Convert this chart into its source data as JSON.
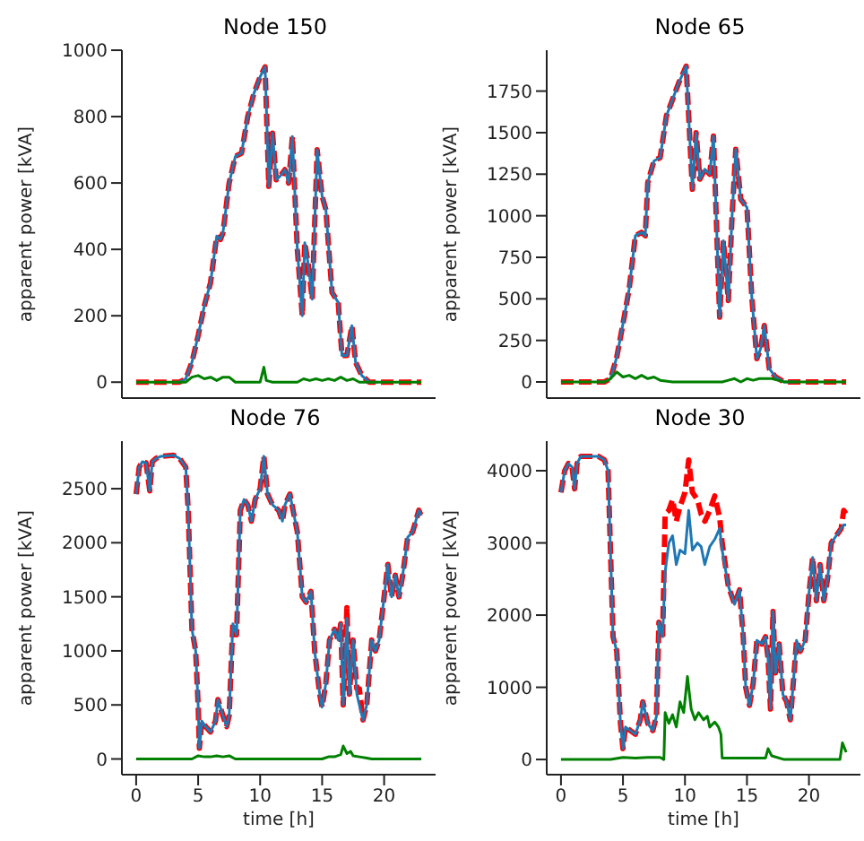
{
  "chart_data": [
    {
      "type": "line",
      "title": "Node 150",
      "ylabel": "apparent power [kVA]",
      "xlim": [
        -1.15,
        24.15
      ],
      "ylim": [
        -48,
        1000
      ],
      "yticks": [
        0,
        200,
        400,
        600,
        800,
        1000
      ],
      "tick_labels": "y",
      "series": [
        {
          "color": "#ff0000",
          "line_style": "dashed",
          "x": [
            0,
            1,
            2,
            3,
            3.5,
            4,
            4.5,
            5,
            5.5,
            6,
            6.5,
            6.8,
            7,
            7.5,
            8,
            8.5,
            9,
            9.5,
            10,
            10.4,
            10.7,
            11,
            11.3,
            11.6,
            12,
            12.3,
            12.6,
            13,
            13.4,
            13.6,
            13.9,
            14.2,
            14.6,
            15,
            15.3,
            15.8,
            16.3,
            16.6,
            17,
            17.4,
            17.7,
            18.2,
            18.8,
            19.5,
            20,
            21,
            22,
            23
          ],
          "values": [
            0,
            0,
            0,
            0,
            0,
            10,
            60,
            140,
            230,
            300,
            440,
            430,
            450,
            600,
            680,
            690,
            800,
            870,
            920,
            950,
            590,
            750,
            610,
            620,
            640,
            600,
            740,
            400,
            200,
            420,
            350,
            250,
            700,
            560,
            520,
            270,
            240,
            80,
            80,
            170,
            60,
            20,
            0,
            0,
            0,
            0,
            0,
            0
          ]
        },
        {
          "color": "#1f77b4",
          "line_style": "solid",
          "x": [
            3,
            3.5,
            4,
            4.5,
            5,
            5.5,
            6,
            6.5,
            6.8,
            7,
            7.5,
            8,
            8.5,
            9,
            9.5,
            10,
            10.4,
            10.7,
            11,
            11.3,
            11.6,
            12,
            12.3,
            12.6,
            13,
            13.4,
            13.6,
            13.9,
            14.2,
            14.6,
            15,
            15.3,
            15.8,
            16.3,
            16.6,
            17,
            17.4,
            17.7,
            18.2,
            18.8,
            19.5
          ],
          "values": [
            0,
            0,
            10,
            60,
            140,
            230,
            300,
            440,
            430,
            450,
            600,
            680,
            690,
            800,
            870,
            920,
            950,
            590,
            750,
            610,
            620,
            640,
            600,
            740,
            400,
            200,
            420,
            350,
            250,
            700,
            560,
            520,
            270,
            240,
            80,
            80,
            170,
            60,
            20,
            0,
            0
          ]
        },
        {
          "color": "#008000",
          "line_style": "solid",
          "x": [
            0,
            4,
            4.5,
            5,
            5.5,
            6,
            6.5,
            7,
            7.5,
            8,
            9,
            10,
            10.3,
            10.5,
            11,
            13,
            13.5,
            14,
            14.5,
            15,
            15.5,
            16,
            16.5,
            17,
            17.5,
            18,
            23
          ],
          "values": [
            0,
            0,
            15,
            20,
            10,
            15,
            5,
            15,
            15,
            0,
            0,
            0,
            45,
            5,
            0,
            0,
            10,
            5,
            10,
            5,
            10,
            5,
            15,
            5,
            10,
            0,
            0
          ]
        }
      ]
    },
    {
      "type": "line",
      "title": "Node 65",
      "ylabel": "apparent power [kVA]",
      "xlim": [
        -1.15,
        24.15
      ],
      "ylim": [
        -97,
        1996
      ],
      "yticks": [
        0,
        250,
        500,
        750,
        1000,
        1250,
        1500,
        1750
      ],
      "tick_labels": "y",
      "series": [
        {
          "color": "#ff0000",
          "line_style": "dashed",
          "x": [
            0,
            1,
            2,
            3,
            3.5,
            4,
            4.5,
            5,
            5.5,
            6,
            6.5,
            6.8,
            7,
            7.5,
            8,
            8.5,
            9,
            9.5,
            10.1,
            10.4,
            10.6,
            10.9,
            11.2,
            11.6,
            12,
            12.3,
            12.8,
            13.1,
            13.5,
            13.8,
            14.1,
            14.5,
            15,
            15.4,
            15.8,
            16.1,
            16.4,
            16.8,
            17.3,
            18,
            19,
            20,
            21,
            22,
            23
          ],
          "values": [
            0,
            0,
            0,
            0,
            0,
            20,
            150,
            350,
            560,
            880,
            900,
            880,
            1200,
            1330,
            1350,
            1600,
            1700,
            1800,
            1900,
            1450,
            1160,
            1500,
            1220,
            1280,
            1250,
            1480,
            390,
            850,
            490,
            1000,
            1400,
            1100,
            1050,
            500,
            140,
            200,
            340,
            80,
            30,
            0,
            0,
            0,
            0,
            0,
            0
          ]
        },
        {
          "color": "#1f77b4",
          "line_style": "solid",
          "x": [
            3,
            3.5,
            4,
            4.5,
            5,
            5.5,
            6,
            6.5,
            6.8,
            7,
            7.5,
            8,
            8.5,
            9,
            9.5,
            10.1,
            10.4,
            10.6,
            10.9,
            11.2,
            11.6,
            12,
            12.3,
            12.8,
            13.1,
            13.5,
            13.8,
            14.1,
            14.5,
            15,
            15.4,
            15.8,
            16.1,
            16.4,
            16.8,
            17.3,
            18,
            19
          ],
          "values": [
            0,
            0,
            20,
            150,
            350,
            560,
            880,
            900,
            880,
            1200,
            1330,
            1350,
            1600,
            1700,
            1800,
            1900,
            1450,
            1160,
            1500,
            1220,
            1280,
            1250,
            1480,
            390,
            850,
            490,
            1000,
            1400,
            1100,
            1050,
            500,
            140,
            200,
            340,
            80,
            30,
            0,
            0
          ]
        },
        {
          "color": "#008000",
          "line_style": "solid",
          "x": [
            0,
            3.5,
            4,
            4.5,
            5,
            5.5,
            6,
            6.5,
            7,
            7.5,
            8,
            9,
            13,
            13.5,
            14,
            14.5,
            15,
            15.5,
            16,
            16.5,
            17,
            17.5,
            18,
            23
          ],
          "values": [
            0,
            0,
            20,
            60,
            30,
            40,
            20,
            40,
            20,
            30,
            10,
            0,
            0,
            10,
            20,
            0,
            20,
            10,
            20,
            20,
            20,
            10,
            0,
            0
          ]
        }
      ]
    },
    {
      "type": "line",
      "title": "Node 76",
      "xlabel": "time [h]",
      "ylabel": "apparent power [kVA]",
      "xlim": [
        -1.15,
        24.15
      ],
      "xticks": [
        0,
        5,
        10,
        15,
        20
      ],
      "ylim": [
        -145,
        2940
      ],
      "yticks": [
        0,
        500,
        1000,
        1500,
        2000,
        2500
      ],
      "series": [
        {
          "color": "#ff0000",
          "line_style": "dashed",
          "x": [
            0,
            0.25,
            0.5,
            0.8,
            1.1,
            1.3,
            1.6,
            2,
            3,
            3.5,
            4,
            4.2,
            4.5,
            4.8,
            5,
            5.1,
            5.3,
            5.6,
            6,
            6.4,
            6.6,
            7,
            7.3,
            7.5,
            7.8,
            8.1,
            8.4,
            8.7,
            9,
            9.3,
            9.6,
            10,
            10.3,
            10.6,
            11,
            11.5,
            11.8,
            12,
            12.4,
            13,
            13.4,
            13.7,
            14.1,
            14.4,
            14.8,
            15,
            15.3,
            15.6,
            16,
            16.3,
            16.5,
            16.7,
            17,
            17.2,
            17.5,
            17.8,
            18,
            18.3,
            18.6,
            19,
            19.3,
            19.6,
            20,
            20.3,
            20.6,
            20.9,
            21.2,
            21.5,
            21.9,
            22.3,
            22.8,
            23
          ],
          "values": [
            2450,
            2700,
            2750,
            2740,
            2480,
            2750,
            2780,
            2800,
            2810,
            2780,
            2700,
            2300,
            1200,
            1000,
            500,
            100,
            350,
            300,
            250,
            350,
            550,
            400,
            300,
            400,
            1250,
            1150,
            2300,
            2400,
            2350,
            2200,
            2400,
            2500,
            2800,
            2450,
            2350,
            2300,
            2200,
            2350,
            2450,
            2100,
            1500,
            1450,
            1550,
            1000,
            600,
            480,
            700,
            1100,
            1200,
            1100,
            1250,
            500,
            1400,
            600,
            1100,
            650,
            650,
            360,
            500,
            1100,
            1000,
            1100,
            1500,
            1800,
            1500,
            1700,
            1500,
            1700,
            2050,
            2100,
            2300,
            2250
          ]
        },
        {
          "color": "#1f77b4",
          "line_style": "solid",
          "x": [
            0,
            0.25,
            0.5,
            0.8,
            1.1,
            1.3,
            1.6,
            2,
            3,
            3.5,
            4,
            4.2,
            4.5,
            4.8,
            5,
            5.1,
            5.3,
            5.6,
            6,
            6.4,
            6.6,
            7,
            7.3,
            7.5,
            7.8,
            8.1,
            8.4,
            8.7,
            9,
            9.3,
            9.6,
            10,
            10.3,
            10.6,
            11,
            11.5,
            11.8,
            12,
            12.4,
            13,
            13.4,
            13.7,
            14.1,
            14.4,
            14.8,
            15,
            15.3,
            15.6,
            16,
            16.3,
            16.5,
            16.7,
            17,
            17.2,
            17.5,
            17.8,
            18,
            18.3,
            18.6,
            19,
            19.3,
            19.6,
            20,
            20.3,
            20.6,
            20.9,
            21.2,
            21.5,
            21.9,
            22.3,
            22.8,
            23
          ],
          "values": [
            2450,
            2700,
            2750,
            2740,
            2480,
            2750,
            2780,
            2800,
            2810,
            2780,
            2700,
            2300,
            1200,
            1000,
            500,
            100,
            350,
            300,
            250,
            350,
            550,
            400,
            300,
            400,
            1250,
            1150,
            2300,
            2400,
            2350,
            2200,
            2400,
            2500,
            2800,
            2450,
            2350,
            2300,
            2200,
            2350,
            2450,
            2100,
            1500,
            1450,
            1550,
            1000,
            600,
            480,
            700,
            1100,
            1200,
            1100,
            1250,
            500,
            1300,
            600,
            1100,
            600,
            500,
            360,
            500,
            1100,
            1000,
            1100,
            1500,
            1800,
            1500,
            1700,
            1500,
            1700,
            2050,
            2100,
            2300,
            2250
          ]
        },
        {
          "color": "#008000",
          "line_style": "solid",
          "x": [
            0,
            4.5,
            5,
            5.5,
            6,
            6.5,
            7,
            7.5,
            8,
            15,
            15.5,
            16,
            16.5,
            16.7,
            17,
            17.3,
            17.5,
            18,
            18.5,
            19,
            23
          ],
          "values": [
            0,
            0,
            30,
            20,
            20,
            30,
            20,
            30,
            0,
            0,
            20,
            20,
            40,
            120,
            50,
            70,
            30,
            20,
            10,
            0,
            0
          ]
        }
      ]
    },
    {
      "type": "line",
      "title": "Node 30",
      "xlabel": "time [h]",
      "ylabel": "apparent power [kVA]",
      "xlim": [
        -1.15,
        24.15
      ],
      "xticks": [
        0,
        5,
        10,
        15,
        20
      ],
      "ylim": [
        -210,
        4410
      ],
      "yticks": [
        0,
        1000,
        2000,
        3000,
        4000
      ],
      "series": [
        {
          "color": "#ff0000",
          "line_style": "dashed",
          "x": [
            0,
            0.3,
            0.6,
            0.9,
            1.1,
            1.3,
            1.6,
            2,
            3,
            3.5,
            3.8,
            4.2,
            4.5,
            4.8,
            5,
            5.2,
            5.6,
            6,
            6.4,
            6.6,
            7,
            7.4,
            7.7,
            7.9,
            8.2,
            8.4,
            8.7,
            9,
            9.3,
            9.6,
            10,
            10.3,
            10.6,
            11,
            11.3,
            11.6,
            12,
            12.4,
            12.8,
            13,
            13.5,
            14,
            14.4,
            14.7,
            14.9,
            15.2,
            15.5,
            15.8,
            16.2,
            16.5,
            16.7,
            16.9,
            17.1,
            17.3,
            17.6,
            17.9,
            18.2,
            18.5,
            18.8,
            19,
            19.3,
            19.7,
            20,
            20.3,
            20.6,
            20.9,
            21.2,
            21.5,
            21.8,
            22.2,
            22.6,
            22.8,
            23
          ],
          "values": [
            3700,
            4000,
            4100,
            4050,
            3750,
            4100,
            4200,
            4200,
            4200,
            4150,
            4000,
            1700,
            1500,
            500,
            150,
            450,
            400,
            350,
            550,
            800,
            500,
            400,
            600,
            1900,
            1700,
            3400,
            3450,
            3600,
            3300,
            3500,
            3700,
            4150,
            3700,
            3600,
            3400,
            3300,
            3450,
            3650,
            3350,
            3000,
            2400,
            2150,
            2350,
            1700,
            1000,
            750,
            1050,
            1650,
            1600,
            1700,
            1400,
            700,
            2050,
            1200,
            1600,
            900,
            800,
            550,
            1200,
            1650,
            1500,
            1650,
            2300,
            2800,
            2200,
            2700,
            2200,
            2500,
            3000,
            3100,
            3200,
            3450,
            3400
          ]
        },
        {
          "color": "#1f77b4",
          "line_style": "solid",
          "x": [
            0,
            0.3,
            0.6,
            0.9,
            1.1,
            1.3,
            1.6,
            2,
            3,
            3.5,
            3.8,
            4.2,
            4.5,
            4.8,
            5,
            5.2,
            5.6,
            6,
            6.4,
            6.6,
            7,
            7.4,
            7.7,
            7.9,
            8.2,
            8.4,
            8.7,
            9,
            9.3,
            9.6,
            10,
            10.3,
            10.6,
            11,
            11.3,
            11.6,
            12,
            12.4,
            12.8,
            13,
            13.5,
            14,
            14.4,
            14.7,
            14.9,
            15.2,
            15.5,
            15.8,
            16.2,
            16.5,
            16.7,
            16.9,
            17.1,
            17.3,
            17.6,
            17.9,
            18.2,
            18.5,
            18.8,
            19,
            19.3,
            19.7,
            20,
            20.3,
            20.6,
            20.9,
            21.2,
            21.5,
            21.8,
            22.2,
            22.6,
            22.8,
            23
          ],
          "values": [
            3700,
            4000,
            4100,
            4050,
            3750,
            4100,
            4200,
            4200,
            4200,
            4150,
            4000,
            1700,
            1500,
            500,
            150,
            450,
            400,
            350,
            550,
            800,
            500,
            400,
            600,
            1900,
            1700,
            2600,
            3000,
            3100,
            2700,
            2900,
            2850,
            3450,
            2900,
            3000,
            2950,
            2700,
            2950,
            3050,
            3200,
            2900,
            2400,
            2150,
            2350,
            1700,
            1000,
            750,
            1050,
            1650,
            1600,
            1700,
            1400,
            700,
            2050,
            1200,
            1600,
            900,
            800,
            550,
            1200,
            1650,
            1500,
            1650,
            2300,
            2800,
            2200,
            2700,
            2200,
            2500,
            3000,
            3100,
            3200,
            3250,
            3250
          ]
        },
        {
          "color": "#008000",
          "line_style": "solid",
          "x": [
            0,
            4,
            5,
            6,
            7,
            8,
            8.3,
            8.4,
            8.7,
            9,
            9.3,
            9.6,
            9.9,
            10.2,
            10.5,
            10.8,
            11.1,
            11.5,
            11.8,
            12,
            12.4,
            12.7,
            12.9,
            13,
            16.5,
            16.7,
            17,
            18,
            22.5,
            22.7,
            23
          ],
          "values": [
            0,
            0,
            30,
            20,
            30,
            30,
            0,
            650,
            500,
            620,
            450,
            800,
            650,
            1150,
            700,
            550,
            650,
            550,
            600,
            450,
            520,
            450,
            350,
            20,
            20,
            150,
            50,
            0,
            0,
            230,
            100
          ]
        }
      ]
    }
  ]
}
